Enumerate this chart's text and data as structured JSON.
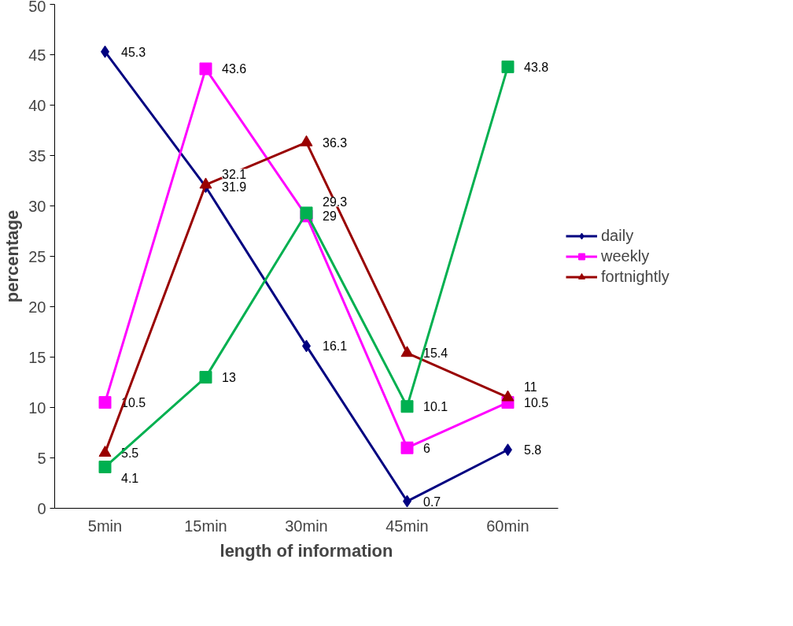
{
  "chart_data": {
    "type": "line",
    "xlabel": "length of information",
    "ylabel": "percentage",
    "categories": [
      "5min",
      "15min",
      "30min",
      "45min",
      "60min"
    ],
    "ylim": [
      0,
      50
    ],
    "yticks": [
      0,
      5,
      10,
      15,
      20,
      25,
      30,
      35,
      40,
      45,
      50
    ],
    "series": [
      {
        "name": "daily",
        "color": "#000080",
        "marker": "diamond",
        "values": [
          45.3,
          31.9,
          16.1,
          0.7,
          5.8
        ]
      },
      {
        "name": "weekly",
        "color": "#ff00ff",
        "marker": "square",
        "values": [
          10.5,
          43.6,
          29,
          6,
          10.5
        ]
      },
      {
        "name": "fortnightly",
        "color": "#990000",
        "marker": "triangle",
        "values": [
          5.5,
          32.1,
          36.3,
          15.4,
          11
        ]
      },
      {
        "color": "#00b050",
        "marker": "square",
        "values": [
          4.1,
          13,
          29.3,
          10.1,
          43.8
        ]
      }
    ],
    "data_labels": true,
    "grid": false,
    "legend": "right",
    "line_style": "solid"
  }
}
